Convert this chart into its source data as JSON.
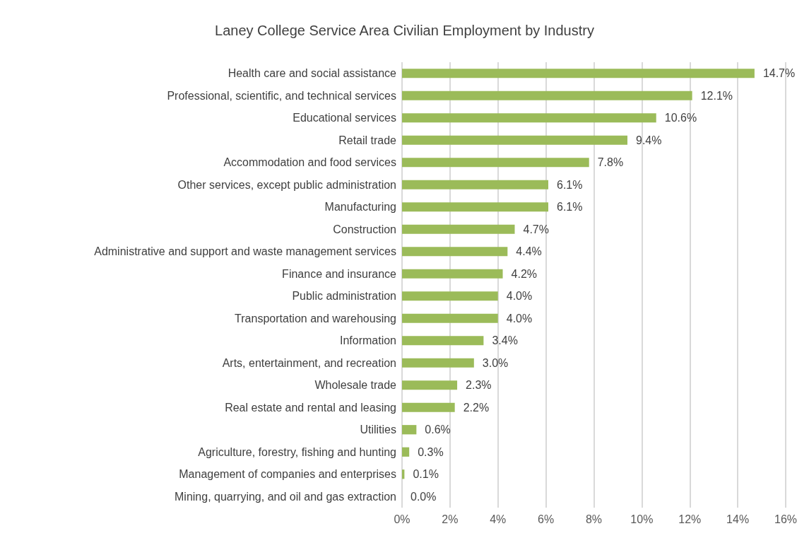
{
  "chart_data": {
    "type": "bar",
    "orientation": "horizontal",
    "title": "Laney College Service Area Civilian Employment by Industry",
    "categories": [
      "Health care and social assistance",
      "Professional, scientific, and technical services",
      "Educational services",
      "Retail trade",
      "Accommodation and food services",
      "Other services, except public administration",
      "Manufacturing",
      "Construction",
      "Administrative and support and waste management services",
      "Finance and insurance",
      "Public administration",
      "Transportation and warehousing",
      "Information",
      "Arts, entertainment, and recreation",
      "Wholesale trade",
      "Real estate and rental and leasing",
      "Utilities",
      "Agriculture, forestry, fishing and hunting",
      "Management of companies and enterprises",
      "Mining, quarrying, and oil and gas extraction"
    ],
    "values": [
      14.7,
      12.1,
      10.6,
      9.4,
      7.8,
      6.1,
      6.1,
      4.7,
      4.4,
      4.2,
      4.0,
      4.0,
      3.4,
      3.0,
      2.3,
      2.2,
      0.6,
      0.3,
      0.1,
      0.0
    ],
    "value_labels": [
      "14.7%",
      "12.1%",
      "10.6%",
      "9.4%",
      "7.8%",
      "6.1%",
      "6.1%",
      "4.7%",
      "4.4%",
      "4.2%",
      "4.0%",
      "4.0%",
      "3.4%",
      "3.0%",
      "2.3%",
      "2.2%",
      "0.6%",
      "0.3%",
      "0.1%",
      "0.0%"
    ],
    "color": "#9bbb59",
    "xlim": [
      0,
      16
    ],
    "xticks": [
      {
        "value": 0,
        "label": "0%"
      },
      {
        "value": 2,
        "label": "2%"
      },
      {
        "value": 4,
        "label": "4%"
      },
      {
        "value": 6,
        "label": "6%"
      },
      {
        "value": 8,
        "label": "8%"
      },
      {
        "value": 10,
        "label": "10%"
      },
      {
        "value": 12,
        "label": "12%"
      },
      {
        "value": 14,
        "label": "14%"
      },
      {
        "value": 16,
        "label": "16%"
      }
    ],
    "grid": "x"
  }
}
